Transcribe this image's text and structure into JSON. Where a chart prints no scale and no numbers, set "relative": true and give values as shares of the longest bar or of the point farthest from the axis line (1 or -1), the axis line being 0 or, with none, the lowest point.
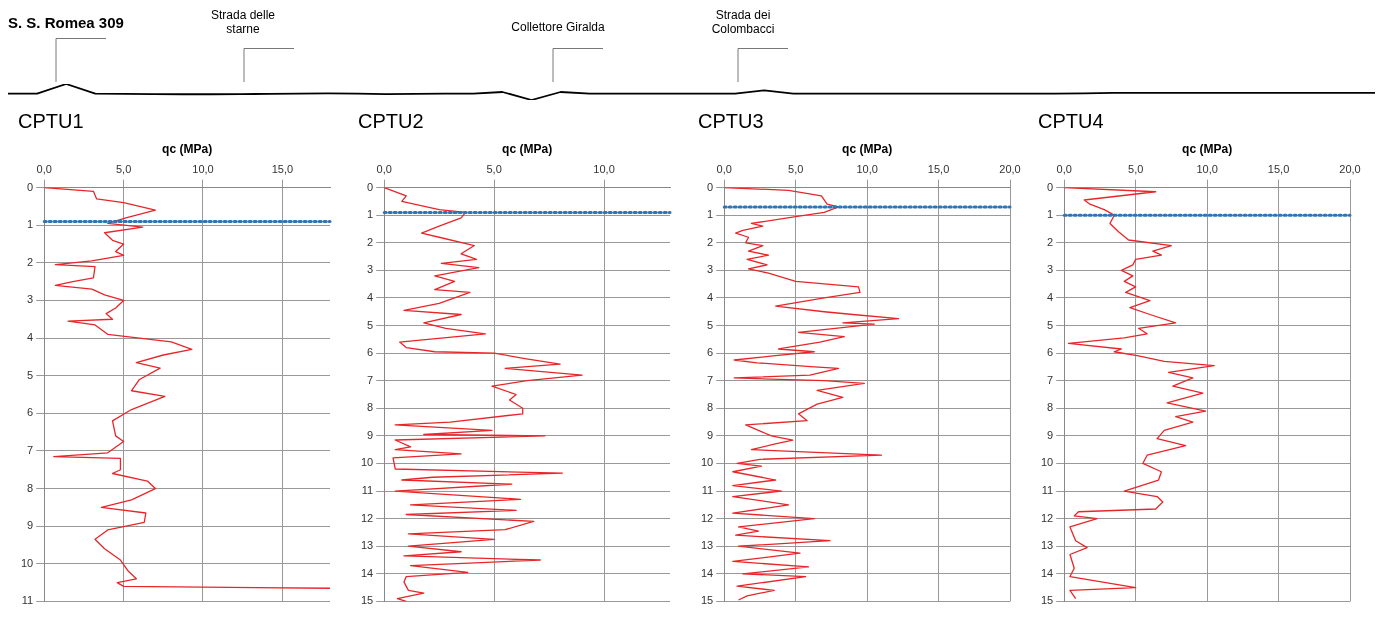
{
  "chart_data": [
    {
      "type": "line",
      "relative": true,
      "color": "#000000",
      "marker": "none",
      "annotations": [
        "S. S. Romea 309",
        "Strada delle starne",
        "Collettore Giralda",
        "Strada dei Colombacci"
      ],
      "categories": [
        null,
        null,
        null,
        null,
        null,
        null,
        null,
        null,
        null,
        null,
        null,
        null,
        null,
        null,
        null,
        null,
        null,
        null,
        null,
        null,
        null,
        null,
        null,
        null,
        null,
        null,
        null,
        null,
        null,
        null,
        null,
        null,
        null,
        null,
        null,
        null,
        null,
        null,
        null,
        null,
        null,
        null,
        null,
        null,
        null,
        null,
        null,
        null
      ],
      "values": [
        0.4,
        0.4,
        1,
        0.4,
        0.38,
        0.37,
        0.36,
        0.36,
        0.37,
        0.38,
        0.4,
        0.42,
        0.4,
        0.37,
        0.38,
        0.4,
        0.4,
        0.5,
        0,
        0.5,
        0.4,
        0.4,
        0.4,
        0.4,
        0.4,
        0.4,
        0.6,
        0.4,
        0.4,
        0.4,
        0.4,
        0.4,
        0.4,
        0.4,
        0.4,
        0.4,
        0.4,
        0.42,
        0.45,
        0.45,
        0.45,
        0.45,
        0.45,
        0.45,
        0.45,
        0.45,
        0.45,
        0.45
      ]
    },
    {
      "type": "line",
      "title": "CPTU1",
      "xlabel": "qc (MPa)",
      "color": "#e8262a",
      "marker": "none",
      "grid": true,
      "x": [
        0,
        3.1,
        3.3,
        5,
        7,
        5.2,
        4,
        6.2,
        3.8,
        4.3,
        5,
        4.5,
        5,
        3,
        0.7,
        3.2,
        3.1,
        1.8,
        0.7,
        3,
        3.8,
        5,
        4.5,
        3.9,
        4.3,
        1.5,
        3.2,
        4,
        8,
        9.3,
        7.5,
        5.8,
        7.3,
        6,
        5.5,
        7.6,
        5.5,
        4.3,
        4.5,
        5,
        4.0,
        0.6,
        4.8,
        4.8,
        4.3,
        6.5,
        7,
        5.5,
        3.6,
        6.4,
        6.3,
        4,
        3.2,
        3.8,
        4.8,
        5.3,
        5.8,
        4.6,
        5,
        18
      ],
      "values": [
        0,
        0.1,
        0.3,
        0.4,
        0.6,
        0.8,
        0.95,
        1.05,
        1.2,
        1.4,
        1.5,
        1.7,
        1.8,
        1.95,
        2.05,
        2.1,
        2.4,
        2.5,
        2.6,
        2.7,
        2.85,
        3.0,
        3.2,
        3.35,
        3.5,
        3.55,
        3.65,
        3.9,
        4.1,
        4.3,
        4.45,
        4.65,
        4.8,
        5.1,
        5.4,
        5.55,
        5.9,
        6.2,
        6.6,
        6.75,
        7.05,
        7.15,
        7.2,
        7.5,
        7.6,
        7.8,
        8.0,
        8.3,
        8.5,
        8.65,
        8.9,
        9.1,
        9.35,
        9.6,
        9.9,
        10.2,
        10.4,
        10.5,
        10.6,
        10.65
      ],
      "xlim": [
        0,
        18
      ],
      "xticks": [
        {
          "value": 0,
          "label": "0,0"
        },
        {
          "value": 5,
          "label": "5,0"
        },
        {
          "value": 10,
          "label": "10,0"
        },
        {
          "value": 15,
          "label": "15,0"
        }
      ],
      "ylim": [
        11,
        0
      ],
      "yticks": [
        0,
        1,
        2,
        3,
        4,
        5,
        6,
        7,
        8,
        9,
        10,
        11
      ],
      "ref_lines": [
        {
          "axis": "y",
          "value": 0.9,
          "color": "#2e75b6",
          "line_style": "dotted"
        }
      ]
    },
    {
      "type": "line",
      "title": "CPTU2",
      "xlabel": "qc (MPa)",
      "color": "#e8262a",
      "marker": "none",
      "grid": true,
      "x": [
        0,
        1,
        0.8,
        2.5,
        3.7,
        3.5,
        2.5,
        1.7,
        2.5,
        4.1,
        3.5,
        4.2,
        2.6,
        4.3,
        2.3,
        3.2,
        2.3,
        3.9,
        2.5,
        0.9,
        3.5,
        1.8,
        2.8,
        4.6,
        2,
        0.7,
        1,
        2.3,
        5,
        6.4,
        8,
        5.5,
        9,
        6.5,
        4.9,
        6,
        5.7,
        6.3,
        6.3,
        3,
        0.5,
        4.9,
        1.8,
        7.3,
        0.5,
        1.2,
        0.5,
        3.5,
        0.4,
        0.5,
        8.1,
        2.2,
        0.8,
        5.8,
        0.5,
        6.2,
        1.2,
        6,
        1,
        6.8,
        5.5,
        1.1,
        5,
        1.1,
        3.5,
        0.9,
        7.1,
        1.2,
        3.8,
        1,
        0.9,
        1.1,
        1.8,
        0.6,
        1
      ],
      "values": [
        0,
        0.3,
        0.5,
        0.8,
        0.9,
        1.1,
        1.4,
        1.65,
        1.8,
        2.1,
        2.4,
        2.6,
        2.75,
        2.9,
        3.2,
        3.4,
        3.7,
        3.8,
        4.2,
        4.45,
        4.6,
        4.9,
        5.1,
        5.3,
        5.5,
        5.6,
        5.8,
        5.95,
        6.0,
        6.2,
        6.4,
        6.55,
        6.8,
        7.0,
        7.2,
        7.5,
        7.7,
        8.0,
        8.2,
        8.5,
        8.6,
        8.8,
        8.95,
        9.0,
        9.15,
        9.4,
        9.5,
        9.65,
        9.8,
        10.2,
        10.35,
        10.5,
        10.6,
        10.75,
        11.0,
        11.3,
        11.5,
        11.7,
        11.85,
        12.1,
        12.4,
        12.55,
        12.75,
        13.0,
        13.2,
        13.35,
        13.5,
        13.7,
        13.95,
        14.1,
        14.3,
        14.6,
        14.7,
        14.9,
        15.0
      ],
      "xlim": [
        0,
        13
      ],
      "xticks": [
        {
          "value": 0,
          "label": "0,0"
        },
        {
          "value": 5,
          "label": "5,0"
        },
        {
          "value": 10,
          "label": "10,0"
        }
      ],
      "ylim": [
        15,
        0
      ],
      "yticks": [
        0,
        1,
        2,
        3,
        4,
        5,
        6,
        7,
        8,
        9,
        10,
        11,
        12,
        13,
        14,
        15
      ],
      "ref_lines": [
        {
          "axis": "y",
          "value": 0.9,
          "color": "#2e75b6",
          "line_style": "dotted"
        }
      ]
    },
    {
      "type": "line",
      "title": "CPTU3",
      "xlabel": "qc (MPa)",
      "color": "#e8262a",
      "marker": "none",
      "grid": true,
      "x": [
        0,
        4.5,
        6.8,
        7.2,
        8,
        7,
        5,
        1.9,
        2.7,
        1.3,
        0.8,
        1.7,
        1.5,
        2.7,
        1.7,
        3.1,
        1.6,
        3,
        1.7,
        3.1,
        5,
        9.4,
        9.5,
        7,
        3.6,
        7,
        9,
        12.2,
        8.3,
        10.5,
        5.2,
        8.4,
        6.7,
        3.8,
        6.3,
        3.4,
        0.7,
        2.3,
        6.3,
        8,
        6,
        0.7,
        7,
        9.8,
        6.5,
        8.3,
        6.5,
        5.2,
        5.8,
        1.5,
        3.3,
        4.8,
        3.5,
        1.9,
        11,
        2.5,
        0.9,
        2.6,
        0.6,
        3.6,
        0.6,
        4,
        0.6,
        4.5,
        0.6,
        6.3,
        1,
        2.4,
        0.8,
        7.4,
        1,
        5.3,
        0.6,
        5.9,
        1.3,
        5.7,
        0.9,
        3.5,
        1.6,
        1
      ],
      "values": [
        0,
        0.1,
        0.3,
        0.6,
        0.7,
        0.9,
        1.05,
        1.3,
        1.4,
        1.55,
        1.65,
        1.8,
        2.0,
        2.1,
        2.3,
        2.45,
        2.6,
        2.8,
        2.95,
        3.1,
        3.4,
        3.6,
        3.8,
        4.0,
        4.3,
        4.5,
        4.6,
        4.75,
        4.9,
        4.95,
        5.25,
        5.4,
        5.6,
        5.85,
        5.95,
        6.1,
        6.25,
        6.35,
        6.5,
        6.55,
        6.8,
        6.9,
        7.0,
        7.1,
        7.35,
        7.6,
        7.85,
        8.2,
        8.45,
        8.6,
        9.0,
        9.15,
        9.3,
        9.5,
        9.7,
        9.85,
        10.0,
        10.1,
        10.3,
        10.6,
        10.8,
        11.0,
        11.2,
        11.5,
        11.8,
        12.0,
        12.3,
        12.45,
        12.6,
        12.8,
        13.0,
        13.25,
        13.55,
        13.75,
        14.0,
        14.1,
        14.45,
        14.6,
        14.8,
        14.95
      ],
      "xlim": [
        0,
        20
      ],
      "xticks": [
        {
          "value": 0,
          "label": "0,0"
        },
        {
          "value": 5,
          "label": "5,0"
        },
        {
          "value": 10,
          "label": "10,0"
        },
        {
          "value": 15,
          "label": "15,0"
        },
        {
          "value": 20,
          "label": "20,0"
        }
      ],
      "ylim": [
        15,
        0
      ],
      "yticks": [
        0,
        1,
        2,
        3,
        4,
        5,
        6,
        7,
        8,
        9,
        10,
        11,
        12,
        13,
        14,
        15
      ],
      "ref_lines": [
        {
          "axis": "y",
          "value": 0.7,
          "color": "#2e75b6",
          "line_style": "dotted"
        }
      ]
    },
    {
      "type": "line",
      "title": "CPTU4",
      "xlabel": "qc (MPa)",
      "color": "#e8262a",
      "marker": "none",
      "grid": true,
      "x": [
        0,
        6.4,
        1.4,
        1.8,
        2.8,
        3.5,
        3.2,
        3.8,
        4.5,
        7.5,
        6.2,
        6.8,
        5,
        4.8,
        4,
        4.8,
        4.2,
        5,
        4.3,
        6,
        4.6,
        6,
        7.8,
        5.2,
        5.8,
        4.2,
        0.3,
        4,
        3.5,
        5.2,
        7,
        10.5,
        7.3,
        9,
        7.6,
        9.7,
        7.2,
        9.9,
        7.8,
        9,
        7,
        6.5,
        8.5,
        5.8,
        5.5,
        6.8,
        6.6,
        4.2,
        6.5,
        6.9,
        6.4,
        1,
        0.7,
        2.3,
        0.4,
        0.8,
        1.6,
        0.4,
        0.7,
        0.4,
        5,
        0.4,
        0.8
      ],
      "values": [
        0,
        0.15,
        0.45,
        0.6,
        0.8,
        1.0,
        1.3,
        1.6,
        1.9,
        2.1,
        2.3,
        2.45,
        2.6,
        2.8,
        3.0,
        3.2,
        3.4,
        3.6,
        3.8,
        4.1,
        4.35,
        4.6,
        4.9,
        5.1,
        5.3,
        5.45,
        5.65,
        5.85,
        5.95,
        6.1,
        6.3,
        6.45,
        6.7,
        6.9,
        7.2,
        7.45,
        7.8,
        8.1,
        8.3,
        8.5,
        8.8,
        9.1,
        9.35,
        9.7,
        10.0,
        10.3,
        10.6,
        11.0,
        11.2,
        11.4,
        11.65,
        11.75,
        11.9,
        12.0,
        12.3,
        12.8,
        13.05,
        13.3,
        13.8,
        14.1,
        14.5,
        14.6,
        14.9
      ],
      "xlim": [
        0,
        20
      ],
      "xticks": [
        {
          "value": 0,
          "label": "0,0"
        },
        {
          "value": 5,
          "label": "5,0"
        },
        {
          "value": 10,
          "label": "10,0"
        },
        {
          "value": 15,
          "label": "15,0"
        },
        {
          "value": 20,
          "label": "20,0"
        }
      ],
      "ylim": [
        15,
        0
      ],
      "yticks": [
        0,
        1,
        2,
        3,
        4,
        5,
        6,
        7,
        8,
        9,
        10,
        11,
        12,
        13,
        14,
        15
      ],
      "ref_lines": [
        {
          "axis": "y",
          "value": 1.0,
          "color": "#2e75b6",
          "line_style": "dotted"
        }
      ]
    }
  ]
}
